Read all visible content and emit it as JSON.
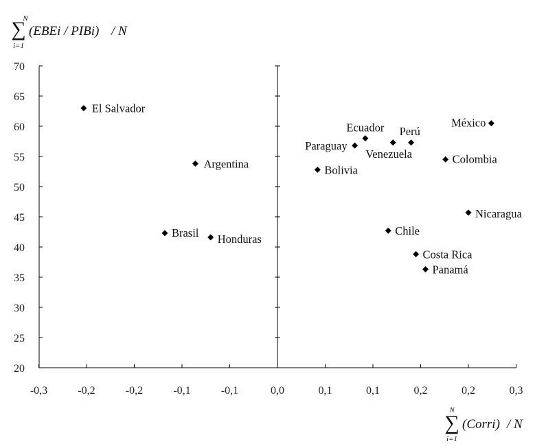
{
  "chart_data": {
    "type": "scatter",
    "ylabel": {
      "sum_top": "N",
      "sum_bottom": "i=1",
      "body": "(EBEi / PIBi)",
      "tail": "/ N"
    },
    "xlabel": {
      "sum_top": "N",
      "sum_bottom": "i=1",
      "body": "(Corri)",
      "tail": "/ N"
    },
    "xlim": [
      -0.25,
      0.25
    ],
    "ylim": [
      20,
      70
    ],
    "x_tick_labels": [
      "-0,3",
      "-0,2",
      "-0,2",
      "-0,1",
      "-0,1",
      "0,0",
      "0,1",
      "0,1",
      "0,2",
      "0,2",
      "0,3"
    ],
    "y_ticks": [
      20,
      25,
      30,
      35,
      40,
      45,
      50,
      55,
      60,
      65,
      70
    ],
    "y_tick_labels": [
      "20",
      "25",
      "30",
      "35",
      "40",
      "45",
      "50",
      "55",
      "60",
      "65",
      "70"
    ],
    "grid": false,
    "points": [
      {
        "label": "El Salvador",
        "x": -0.203,
        "y": 63.0
      },
      {
        "label": "Argentina",
        "x": -0.086,
        "y": 53.8
      },
      {
        "label": "Brasil",
        "x": -0.118,
        "y": 42.3
      },
      {
        "label": "Honduras",
        "x": -0.07,
        "y": 41.6
      },
      {
        "label": "Paraguay",
        "x": 0.081,
        "y": 56.8
      },
      {
        "label": "Ecuador",
        "x": 0.092,
        "y": 58.0
      },
      {
        "label": "Venezuela",
        "x": 0.121,
        "y": 57.3
      },
      {
        "label": "Perú",
        "x": 0.14,
        "y": 57.3
      },
      {
        "label": "México",
        "x": 0.224,
        "y": 60.5
      },
      {
        "label": "Colombia",
        "x": 0.176,
        "y": 54.5
      },
      {
        "label": "Bolivia",
        "x": 0.042,
        "y": 52.8
      },
      {
        "label": "Nicaragua",
        "x": 0.2,
        "y": 45.7
      },
      {
        "label": "Chile",
        "x": 0.116,
        "y": 42.7
      },
      {
        "label": "Costa Rica",
        "x": 0.145,
        "y": 38.8
      },
      {
        "label": "Panamá",
        "x": 0.155,
        "y": 36.3
      }
    ]
  }
}
